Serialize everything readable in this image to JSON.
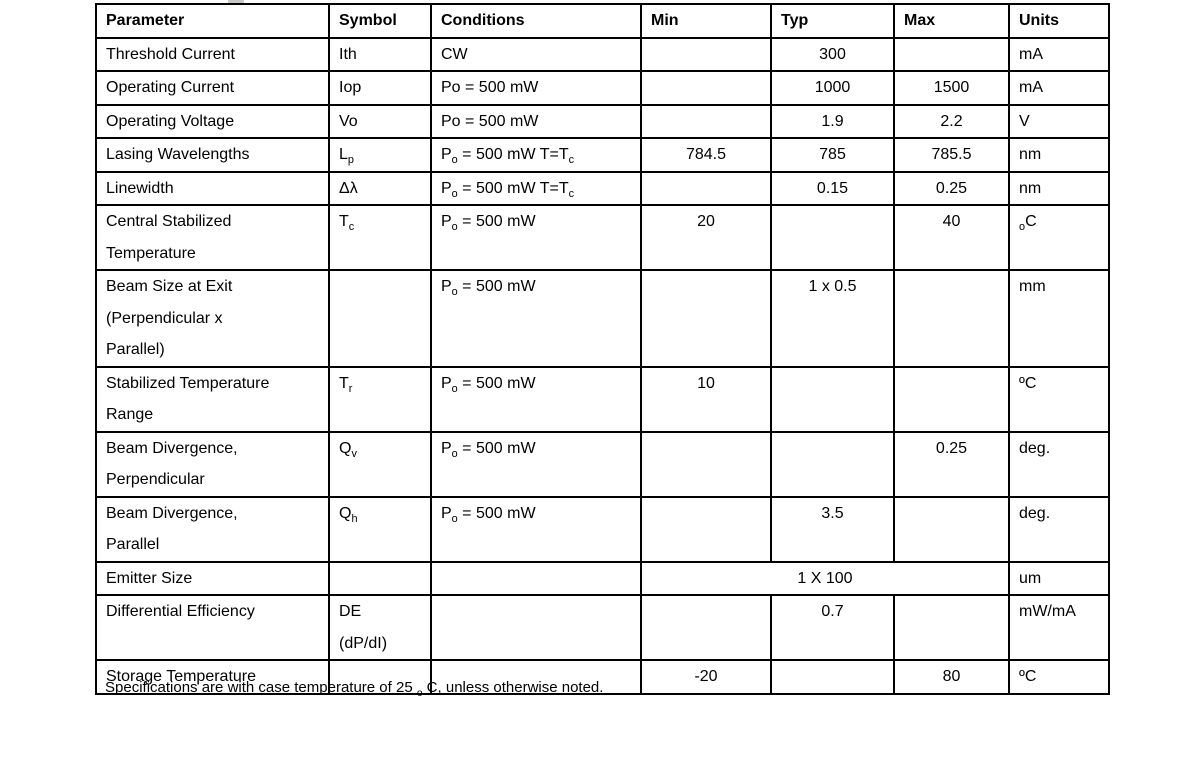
{
  "table": {
    "columns": [
      "Parameter",
      "Symbol",
      "Conditions",
      "Min",
      "Typ",
      "Max",
      "Units"
    ],
    "rows": [
      {
        "parameter": "Threshold Current",
        "symbol": "Ith",
        "conditions": "CW",
        "min": "",
        "typ": "300",
        "max": "",
        "units": "mA"
      },
      {
        "parameter": "Operating Current",
        "symbol": "Iop",
        "conditions": "Po = 500 mW",
        "min": "",
        "typ": "1000",
        "max": "1500",
        "units": "mA"
      },
      {
        "parameter": "Operating Voltage",
        "symbol": "Vo",
        "conditions": "Po = 500 mW",
        "min": "",
        "typ": "1.9",
        "max": "2.2",
        "units": "V"
      },
      {
        "parameter": "Lasing Wavelengths",
        "symbol": "L~p~",
        "conditions": "P~o~ = 500 mW T=T~c~",
        "min": "784.5",
        "typ": "785",
        "max": "785.5",
        "units": "nm"
      },
      {
        "parameter": "Linewidth",
        "symbol": "Δλ",
        "conditions": "P~o~ = 500 mW T=T~c~",
        "min": "",
        "typ": "0.15",
        "max": "0.25",
        "units": "nm"
      },
      {
        "parameter": "Central Stabilized\nTemperature",
        "symbol": "T~c~",
        "conditions": "P~o~ = 500 mW",
        "min": "20",
        "typ": "",
        "max": "40",
        "units": "~o~C"
      },
      {
        "parameter": "Beam Size at Exit\n(Perpendicular x\nParallel)",
        "symbol": "",
        "conditions": "P~o~ = 500 mW",
        "min": "",
        "typ": "1 x 0.5",
        "max": "",
        "units": "mm"
      },
      {
        "parameter": "Stabilized Temperature\nRange",
        "symbol": "T~r~",
        "conditions": "P~o~ = 500 mW",
        "min": "10",
        "typ": "",
        "max": "",
        "units": "ºC"
      },
      {
        "parameter": "Beam Divergence,\nPerpendicular",
        "symbol": "Q~v~",
        "conditions": "P~o~ = 500 mW",
        "min": "",
        "typ": "",
        "max": "0.25",
        "units": "deg."
      },
      {
        "parameter": "Beam Divergence,\nParallel",
        "symbol": "Q~h~",
        "conditions": "P~o~ = 500 mW",
        "min": "",
        "typ": "3.5",
        "max": "",
        "units": "deg."
      },
      {
        "parameter": "Emitter Size",
        "symbol": "",
        "conditions": "",
        "merged": "1 X 100",
        "units": "um"
      },
      {
        "parameter": "Differential Efficiency",
        "symbol": "DE\n(dP/dI)",
        "conditions": "",
        "min": "",
        "typ": "0.7",
        "max": "",
        "units": "mW/mA"
      },
      {
        "parameter": "Storage Temperature",
        "symbol": "",
        "conditions": "",
        "min": "-20",
        "typ": "",
        "max": "80",
        "units": "ºC"
      }
    ]
  },
  "footnote": "Specifications are with case temperature of 25 ~o~ C, unless otherwise noted."
}
